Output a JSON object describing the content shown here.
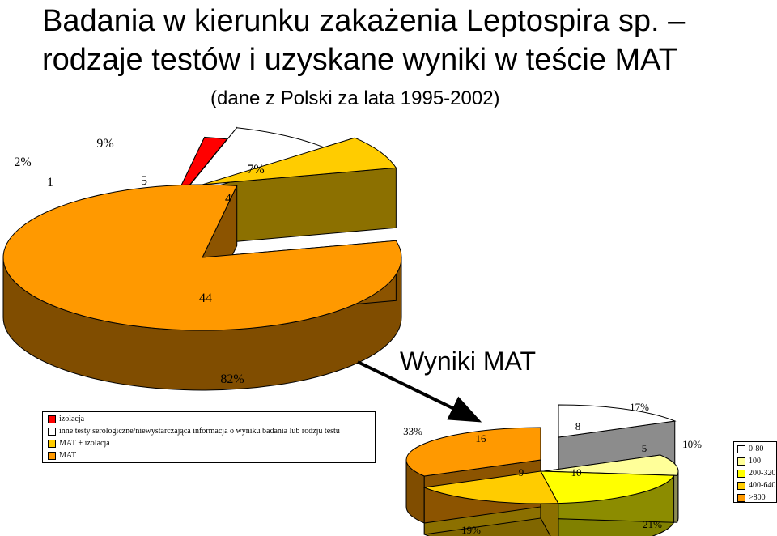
{
  "title_line1": "Badania w kierunku zakażenia Leptospira sp. –",
  "title_line2": "rodzaje testów i uzyskane wyniki w teście MAT",
  "subtitle": "(dane z Polski za lata 1995-2002)",
  "chart_data": [
    {
      "type": "pie",
      "style": "3d-exploded",
      "slices": [
        {
          "label": "izolacja",
          "value": 1,
          "percent": "2%",
          "color": "#ff0000"
        },
        {
          "label": "inne testy serologiczne/niewystarczająca informacja o wyniku badania lub rodzju testu",
          "value": 5,
          "percent": "9%",
          "color": "#ffffff"
        },
        {
          "label": "MAT + izolacja",
          "value": 4,
          "percent": "7%",
          "color": "#ffcc00"
        },
        {
          "label": "MAT",
          "value": 44,
          "percent": "82%",
          "color": "#ff9900"
        }
      ],
      "legend_placement": "bottom-left"
    },
    {
      "type": "pie",
      "title": "Wyniki MAT",
      "style": "3d",
      "slices": [
        {
          "label": "0-80",
          "value": 8,
          "percent": "17%",
          "color": "#ffffff"
        },
        {
          "label": "100",
          "value": 5,
          "percent": "10%",
          "color": "#ffff99"
        },
        {
          "label": "200-320",
          "value": 10,
          "percent": "21%",
          "color": "#ffff00"
        },
        {
          "label": "400-640",
          "value": 9,
          "percent": "19%",
          "color": "#ffcc00"
        },
        {
          "label": ">800",
          "value": 16,
          "percent": "33%",
          "color": "#ff9900"
        }
      ],
      "legend_placement": "right"
    }
  ]
}
